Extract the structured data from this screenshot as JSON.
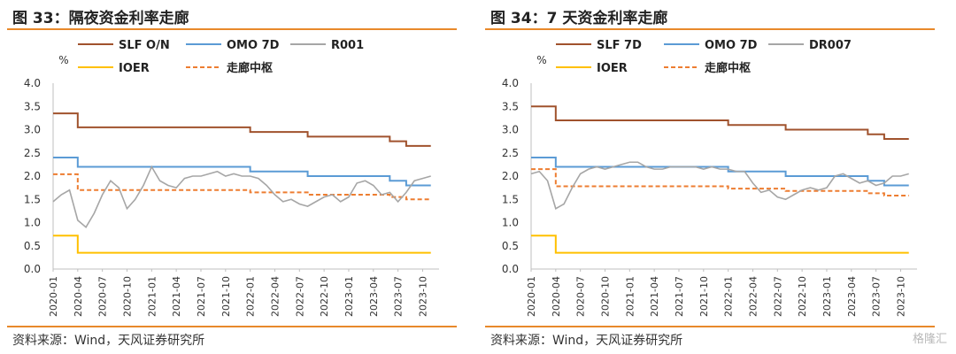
{
  "colors": {
    "accent_rule": "#e8892b",
    "slf": "#a0522d",
    "omo": "#5b9bd5",
    "r": "#a6a6a6",
    "ioer": "#ffc000",
    "corridor": "#ed7d31"
  },
  "watermark": "格隆汇",
  "chart_data": [
    {
      "type": "line",
      "title": "图 33：隔夜资金利率走廊",
      "ylabel": "%",
      "source": "资料来源：Wind，天风证券研究所",
      "ylim": [
        0,
        4.0
      ],
      "yticks": [
        "0.0",
        "0.5",
        "1.0",
        "1.5",
        "2.0",
        "2.5",
        "3.0",
        "3.5",
        "4.0"
      ],
      "xlim": [
        "2020-01",
        "2023-12"
      ],
      "xticks": [
        "2020-01",
        "2020-04",
        "2020-07",
        "2020-10",
        "2021-01",
        "2021-04",
        "2021-07",
        "2021-10",
        "2022-01",
        "2022-04",
        "2022-07",
        "2022-10",
        "2023-01",
        "2023-04",
        "2023-07",
        "2023-10"
      ],
      "legend": [
        {
          "label": "SLF O/N",
          "series": "slf"
        },
        {
          "label": "OMO 7D",
          "series": "omo"
        },
        {
          "label": "R001",
          "series": "r"
        },
        {
          "label": "IOER",
          "series": "ioer"
        },
        {
          "label": "走廊中枢",
          "series": "corridor"
        }
      ],
      "series": [
        {
          "name": "SLF O/N",
          "key": "slf",
          "style": "step",
          "points": [
            [
              "2020-01",
              3.35
            ],
            [
              "2020-04",
              3.05
            ],
            [
              "2022-01",
              2.95
            ],
            [
              "2022-08",
              2.85
            ],
            [
              "2023-06",
              2.75
            ],
            [
              "2023-08",
              2.65
            ],
            [
              "2023-11",
              2.65
            ]
          ]
        },
        {
          "name": "OMO 7D",
          "key": "omo",
          "style": "step",
          "points": [
            [
              "2020-01",
              2.4
            ],
            [
              "2020-04",
              2.2
            ],
            [
              "2022-01",
              2.1
            ],
            [
              "2022-08",
              2.0
            ],
            [
              "2023-06",
              1.9
            ],
            [
              "2023-08",
              1.8
            ],
            [
              "2023-11",
              1.8
            ]
          ]
        },
        {
          "name": "IOER",
          "key": "ioer",
          "style": "step",
          "points": [
            [
              "2020-01",
              0.72
            ],
            [
              "2020-04",
              0.35
            ],
            [
              "2023-11",
              0.35
            ]
          ]
        },
        {
          "name": "走廊中枢",
          "key": "corridor",
          "style": "dash",
          "points": [
            [
              "2020-01",
              2.04
            ],
            [
              "2020-04",
              1.7
            ],
            [
              "2022-01",
              1.65
            ],
            [
              "2022-08",
              1.6
            ],
            [
              "2023-06",
              1.55
            ],
            [
              "2023-08",
              1.5
            ],
            [
              "2023-11",
              1.5
            ]
          ]
        },
        {
          "name": "R001",
          "key": "r",
          "style": "line",
          "points": [
            [
              "2020-01",
              1.45
            ],
            [
              "2020-02",
              1.6
            ],
            [
              "2020-03",
              1.7
            ],
            [
              "2020-04",
              1.05
            ],
            [
              "2020-05",
              0.9
            ],
            [
              "2020-06",
              1.2
            ],
            [
              "2020-07",
              1.6
            ],
            [
              "2020-08",
              1.9
            ],
            [
              "2020-09",
              1.75
            ],
            [
              "2020-10",
              1.3
            ],
            [
              "2020-11",
              1.5
            ],
            [
              "2020-12",
              1.8
            ],
            [
              "2021-01",
              2.2
            ],
            [
              "2021-02",
              1.9
            ],
            [
              "2021-03",
              1.8
            ],
            [
              "2021-04",
              1.75
            ],
            [
              "2021-05",
              1.95
            ],
            [
              "2021-06",
              2.0
            ],
            [
              "2021-07",
              2.0
            ],
            [
              "2021-08",
              2.05
            ],
            [
              "2021-09",
              2.1
            ],
            [
              "2021-10",
              2.0
            ],
            [
              "2021-11",
              2.05
            ],
            [
              "2021-12",
              2.0
            ],
            [
              "2022-01",
              2.0
            ],
            [
              "2022-02",
              1.95
            ],
            [
              "2022-03",
              1.8
            ],
            [
              "2022-04",
              1.6
            ],
            [
              "2022-05",
              1.45
            ],
            [
              "2022-06",
              1.5
            ],
            [
              "2022-07",
              1.4
            ],
            [
              "2022-08",
              1.35
            ],
            [
              "2022-09",
              1.45
            ],
            [
              "2022-10",
              1.55
            ],
            [
              "2022-11",
              1.6
            ],
            [
              "2022-12",
              1.45
            ],
            [
              "2023-01",
              1.55
            ],
            [
              "2023-02",
              1.85
            ],
            [
              "2023-03",
              1.9
            ],
            [
              "2023-04",
              1.8
            ],
            [
              "2023-05",
              1.6
            ],
            [
              "2023-06",
              1.65
            ],
            [
              "2023-07",
              1.45
            ],
            [
              "2023-08",
              1.65
            ],
            [
              "2023-09",
              1.9
            ],
            [
              "2023-10",
              1.95
            ],
            [
              "2023-11",
              2.0
            ]
          ]
        }
      ]
    },
    {
      "type": "line",
      "title": "图 34：7 天资金利率走廊",
      "ylabel": "%",
      "source": "资料来源：Wind，天风证券研究所",
      "ylim": [
        0,
        4.0
      ],
      "yticks": [
        "0.0",
        "0.5",
        "1.0",
        "1.5",
        "2.0",
        "2.5",
        "3.0",
        "3.5",
        "4.0"
      ],
      "xlim": [
        "2020-01",
        "2023-12"
      ],
      "xticks": [
        "2020-01",
        "2020-04",
        "2020-07",
        "2020-10",
        "2021-01",
        "2021-04",
        "2021-07",
        "2021-10",
        "2022-01",
        "2022-04",
        "2022-07",
        "2022-10",
        "2023-01",
        "2023-04",
        "2023-07",
        "2023-10"
      ],
      "legend": [
        {
          "label": "SLF 7D",
          "series": "slf"
        },
        {
          "label": "OMO 7D",
          "series": "omo"
        },
        {
          "label": "DR007",
          "series": "r"
        },
        {
          "label": "IOER",
          "series": "ioer"
        },
        {
          "label": "走廊中枢",
          "series": "corridor"
        }
      ],
      "series": [
        {
          "name": "SLF 7D",
          "key": "slf",
          "style": "step",
          "points": [
            [
              "2020-01",
              3.5
            ],
            [
              "2020-04",
              3.2
            ],
            [
              "2022-01",
              3.1
            ],
            [
              "2022-08",
              3.0
            ],
            [
              "2023-06",
              2.9
            ],
            [
              "2023-08",
              2.8
            ],
            [
              "2023-11",
              2.8
            ]
          ]
        },
        {
          "name": "OMO 7D",
          "key": "omo",
          "style": "step",
          "points": [
            [
              "2020-01",
              2.4
            ],
            [
              "2020-04",
              2.2
            ],
            [
              "2022-01",
              2.1
            ],
            [
              "2022-08",
              2.0
            ],
            [
              "2023-06",
              1.9
            ],
            [
              "2023-08",
              1.8
            ],
            [
              "2023-11",
              1.8
            ]
          ]
        },
        {
          "name": "IOER",
          "key": "ioer",
          "style": "step",
          "points": [
            [
              "2020-01",
              0.72
            ],
            [
              "2020-04",
              0.35
            ],
            [
              "2023-11",
              0.35
            ]
          ]
        },
        {
          "name": "走廊中枢",
          "key": "corridor",
          "style": "dash",
          "points": [
            [
              "2020-01",
              2.15
            ],
            [
              "2020-04",
              1.78
            ],
            [
              "2022-01",
              1.73
            ],
            [
              "2022-08",
              1.68
            ],
            [
              "2023-06",
              1.63
            ],
            [
              "2023-08",
              1.58
            ],
            [
              "2023-11",
              1.58
            ]
          ]
        },
        {
          "name": "DR007",
          "key": "r",
          "style": "line",
          "points": [
            [
              "2020-01",
              2.05
            ],
            [
              "2020-02",
              2.1
            ],
            [
              "2020-03",
              1.9
            ],
            [
              "2020-04",
              1.3
            ],
            [
              "2020-05",
              1.4
            ],
            [
              "2020-06",
              1.75
            ],
            [
              "2020-07",
              2.05
            ],
            [
              "2020-08",
              2.15
            ],
            [
              "2020-09",
              2.2
            ],
            [
              "2020-10",
              2.15
            ],
            [
              "2020-11",
              2.2
            ],
            [
              "2020-12",
              2.25
            ],
            [
              "2021-01",
              2.3
            ],
            [
              "2021-02",
              2.3
            ],
            [
              "2021-03",
              2.2
            ],
            [
              "2021-04",
              2.15
            ],
            [
              "2021-05",
              2.15
            ],
            [
              "2021-06",
              2.2
            ],
            [
              "2021-07",
              2.2
            ],
            [
              "2021-08",
              2.2
            ],
            [
              "2021-09",
              2.2
            ],
            [
              "2021-10",
              2.15
            ],
            [
              "2021-11",
              2.2
            ],
            [
              "2021-12",
              2.15
            ],
            [
              "2022-01",
              2.15
            ],
            [
              "2022-02",
              2.1
            ],
            [
              "2022-03",
              2.1
            ],
            [
              "2022-04",
              1.85
            ],
            [
              "2022-05",
              1.65
            ],
            [
              "2022-06",
              1.7
            ],
            [
              "2022-07",
              1.55
            ],
            [
              "2022-08",
              1.5
            ],
            [
              "2022-09",
              1.6
            ],
            [
              "2022-10",
              1.7
            ],
            [
              "2022-11",
              1.75
            ],
            [
              "2022-12",
              1.7
            ],
            [
              "2023-01",
              1.75
            ],
            [
              "2023-02",
              2.0
            ],
            [
              "2023-03",
              2.05
            ],
            [
              "2023-04",
              1.95
            ],
            [
              "2023-05",
              1.85
            ],
            [
              "2023-06",
              1.9
            ],
            [
              "2023-07",
              1.8
            ],
            [
              "2023-08",
              1.85
            ],
            [
              "2023-09",
              2.0
            ],
            [
              "2023-10",
              2.0
            ],
            [
              "2023-11",
              2.05
            ]
          ]
        }
      ]
    }
  ]
}
